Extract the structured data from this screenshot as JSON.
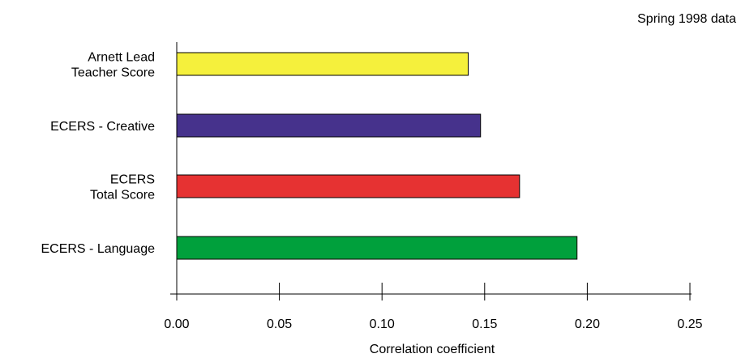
{
  "chart_data": {
    "type": "bar",
    "orientation": "horizontal",
    "note": "Spring 1998 data",
    "xlabel": "Correlation coefficient",
    "xlim": [
      0.0,
      0.25
    ],
    "xticks": [
      "0.00",
      "0.05",
      "0.10",
      "0.15",
      "0.20",
      "0.25"
    ],
    "tick_values": [
      0.0,
      0.05,
      0.1,
      0.15,
      0.2,
      0.25
    ],
    "grid": false,
    "categories": [
      [
        "Arnett Lead",
        "Teacher Score"
      ],
      [
        "ECERS - Creative"
      ],
      [
        "ECERS",
        "Total Score"
      ],
      [
        "ECERS - Language"
      ]
    ],
    "values": [
      0.142,
      0.148,
      0.167,
      0.195
    ],
    "colors": [
      "#f5f03c",
      "#46328c",
      "#e63232",
      "#00a03c"
    ]
  }
}
